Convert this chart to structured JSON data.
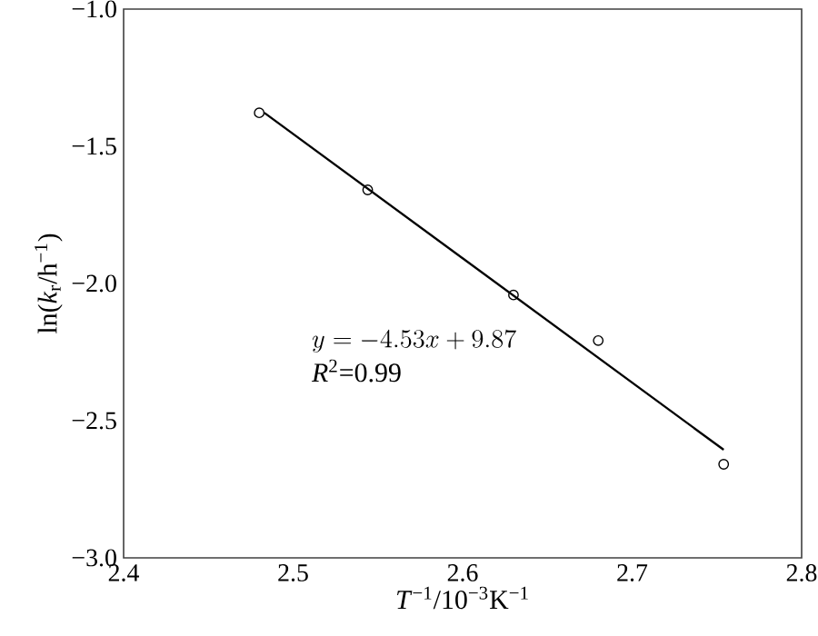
{
  "chart_data": {
    "type": "scatter",
    "xlabel": "*T*$^{−1}$/10$^{−3}$K$^{−1}$",
    "ylabel": "ln(*k*$_{r}$/h$^{−1}$)",
    "xlim": [
      2.4,
      2.8
    ],
    "ylim": [
      -3.0,
      -1.0
    ],
    "xticks": [
      {
        "value": 2.4,
        "label": "2.4"
      },
      {
        "value": 2.5,
        "label": "2.5"
      },
      {
        "value": 2.6,
        "label": "2.6"
      },
      {
        "value": 2.7,
        "label": "2.7"
      },
      {
        "value": 2.8,
        "label": "2.8"
      }
    ],
    "yticks": [
      {
        "value": -3.0,
        "label": "−3.0"
      },
      {
        "value": -2.5,
        "label": "−2.5"
      },
      {
        "value": -2.0,
        "label": "−2.0"
      },
      {
        "value": -1.5,
        "label": "−1.5"
      },
      {
        "value": -1.0,
        "label": "−1.0"
      }
    ],
    "grid": false,
    "series": [
      {
        "color": "#000000",
        "marker": "circle",
        "x": [
          2.48,
          2.544,
          2.63,
          2.68,
          2.754
        ],
        "values": [
          -1.378,
          -1.659,
          -2.042,
          -2.208,
          -2.659
        ]
      },
      {
        "type": "line",
        "color": "#000000",
        "marker": "none",
        "line_style": "solid",
        "x": [
          2.483,
          2.754
        ],
        "values": [
          -1.378,
          -2.606
        ]
      }
    ],
    "annotations": [
      "y=-4.53x+9.87",
      "*R*$^{2}$=0.99"
    ]
  }
}
